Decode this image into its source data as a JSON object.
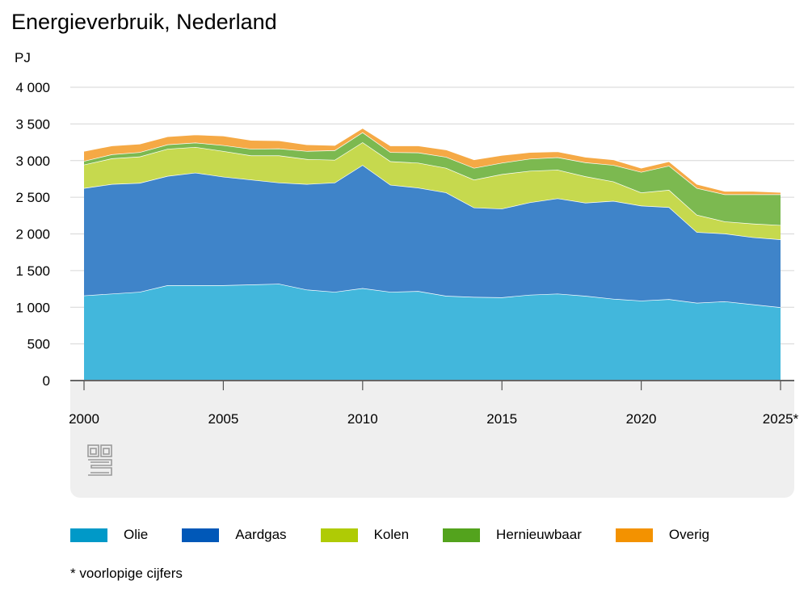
{
  "title": "Energieverbruik, Nederland",
  "unit": "PJ",
  "footnote": "* voorlopige cijfers",
  "chart_data": {
    "type": "area",
    "stacked": true,
    "title": "Energieverbruik, Nederland",
    "ylabel": "PJ",
    "xlabel": "",
    "ylim": [
      0,
      4000
    ],
    "yticks": [
      0,
      500,
      1000,
      1500,
      2000,
      2500,
      3000,
      3500,
      4000
    ],
    "ytick_labels": [
      "0",
      "500",
      "1 000",
      "1 500",
      "2 000",
      "2 500",
      "3 000",
      "3 500",
      "4 000"
    ],
    "xlim": [
      2000,
      2025
    ],
    "xticks": [
      2000,
      2005,
      2010,
      2015,
      2020,
      2025
    ],
    "xtick_labels": [
      "2000",
      "2005",
      "2010",
      "2015",
      "2020",
      "2025*"
    ],
    "grid": true,
    "legend_position": "bottom",
    "x": [
      2000,
      2001,
      2002,
      2003,
      2004,
      2005,
      2006,
      2007,
      2008,
      2009,
      2010,
      2011,
      2012,
      2013,
      2014,
      2015,
      2016,
      2017,
      2018,
      2019,
      2020,
      2021,
      2022,
      2023,
      2024,
      2025
    ],
    "series": [
      {
        "name": "Olie",
        "color": "#42b7dc",
        "values": [
          1160,
          1185,
          1210,
          1300,
          1300,
          1300,
          1310,
          1320,
          1240,
          1210,
          1260,
          1210,
          1220,
          1155,
          1140,
          1135,
          1170,
          1185,
          1155,
          1115,
          1090,
          1110,
          1060,
          1080,
          1040,
          1000
        ]
      },
      {
        "name": "Aardgas",
        "color": "#3f84c9",
        "values": [
          1465,
          1495,
          1485,
          1490,
          1535,
          1480,
          1430,
          1380,
          1440,
          1490,
          1680,
          1460,
          1410,
          1410,
          1220,
          1210,
          1260,
          1300,
          1270,
          1335,
          1295,
          1255,
          965,
          925,
          915,
          925
        ]
      },
      {
        "name": "Kolen",
        "color": "#c6d94e",
        "values": [
          320,
          350,
          360,
          370,
          350,
          350,
          330,
          370,
          340,
          310,
          310,
          320,
          340,
          335,
          380,
          470,
          430,
          390,
          360,
          265,
          180,
          235,
          235,
          165,
          185,
          195
        ]
      },
      {
        "name": "Hernieuwbaar",
        "color": "#7cb950",
        "values": [
          50,
          55,
          60,
          60,
          60,
          80,
          90,
          95,
          110,
          130,
          135,
          125,
          140,
          150,
          160,
          155,
          165,
          170,
          190,
          225,
          280,
          330,
          365,
          370,
          400,
          420
        ]
      },
      {
        "name": "Overig",
        "color": "#f5a945",
        "values": [
          135,
          120,
          115,
          110,
          110,
          130,
          120,
          110,
          90,
          70,
          60,
          90,
          95,
          100,
          115,
          105,
          90,
          80,
          75,
          75,
          55,
          60,
          55,
          45,
          45,
          30
        ]
      }
    ]
  },
  "legend": [
    {
      "label": "Olie",
      "color": "#0099c8"
    },
    {
      "label": "Aardgas",
      "color": "#0058b8"
    },
    {
      "label": "Kolen",
      "color": "#afcb05"
    },
    {
      "label": "Hernieuwbaar",
      "color": "#53a31d"
    },
    {
      "label": "Overig",
      "color": "#f39200"
    }
  ],
  "logo_icon": "cbs-logo-icon"
}
